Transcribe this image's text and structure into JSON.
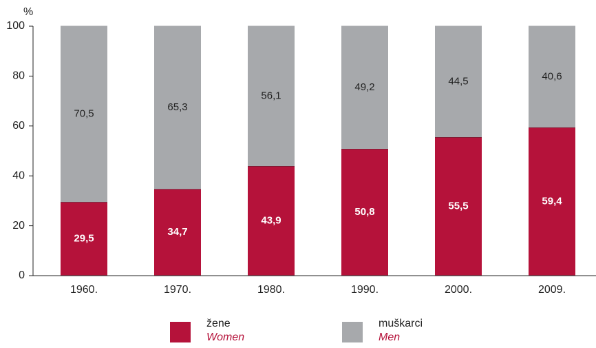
{
  "chart_data": {
    "type": "stacked_bar",
    "y_label": "%",
    "categories": [
      "1960.",
      "1970.",
      "1980.",
      "1990.",
      "2000.",
      "2009."
    ],
    "series": [
      {
        "name": "žene",
        "name_en": "Women",
        "color": "#b5123a",
        "values": [
          29.5,
          34.7,
          43.9,
          50.8,
          55.5,
          59.4
        ],
        "value_labels": [
          "29,5",
          "34,7",
          "43,9",
          "50,8",
          "55,5",
          "59,4"
        ]
      },
      {
        "name": "muškarci",
        "name_en": "Men",
        "color": "#a7a9ac",
        "values": [
          70.5,
          65.3,
          56.1,
          49.2,
          44.5,
          40.6
        ],
        "value_labels": [
          "70,5",
          "65,3",
          "56,1",
          "49,2",
          "44,5",
          "40,6"
        ]
      }
    ],
    "ylim": [
      0,
      100
    ],
    "yticks": [
      0,
      20,
      40,
      60,
      80,
      100
    ],
    "grid": false
  }
}
